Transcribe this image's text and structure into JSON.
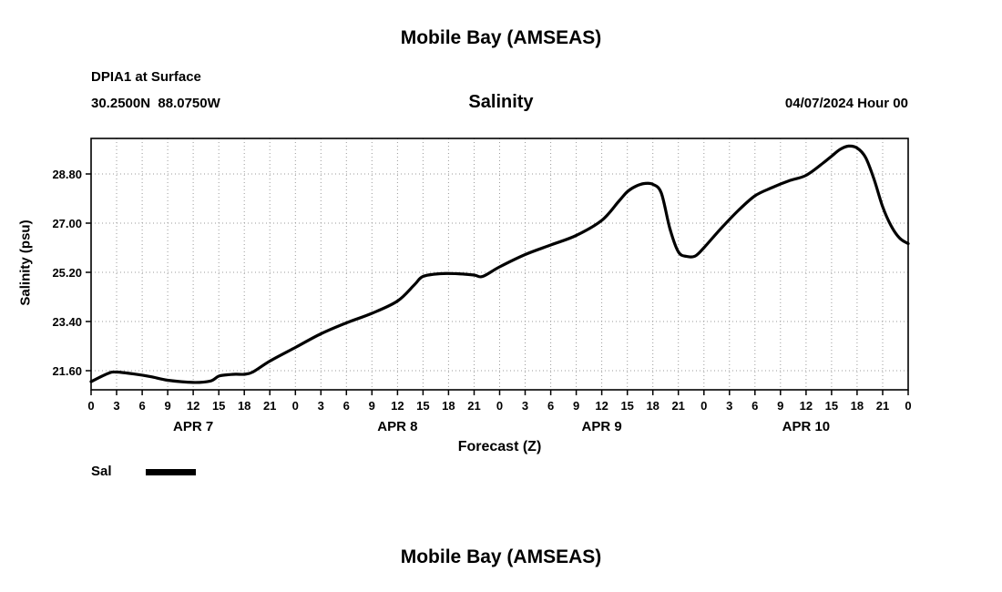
{
  "page": {
    "title": "Mobile Bay (AMSEAS)",
    "bottom_title": "Mobile Bay (AMSEAS)"
  },
  "header": {
    "station_line1": "DPIA1 at Surface",
    "station_line2": "30.2500N  88.0750W",
    "variable_title": "Salinity",
    "run_label": "04/07/2024 Hour 00"
  },
  "legend": {
    "label": "Sal",
    "line_color": "#000000"
  },
  "chart_data": {
    "type": "line",
    "title": "Salinity",
    "xlabel": "Forecast (Z)",
    "ylabel": "Salinity (psu)",
    "xlim": [
      0,
      96
    ],
    "ylim": [
      20.9,
      30.1
    ],
    "xtick_step": 3,
    "xtick_labels_cycle": [
      "0",
      "3",
      "6",
      "9",
      "12",
      "15",
      "18",
      "21"
    ],
    "yticks": [
      21.6,
      23.4,
      25.2,
      27.0,
      28.8
    ],
    "ytick_labels": [
      "21.60",
      "23.40",
      "25.20",
      "27.00",
      "28.80"
    ],
    "day_labels": [
      {
        "label": "APR 7",
        "hour": 12
      },
      {
        "label": "APR 8",
        "hour": 36
      },
      {
        "label": "APR 9",
        "hour": 60
      },
      {
        "label": "APR 10",
        "hour": 84
      }
    ],
    "grid": "dotted",
    "legend_position": "below-left",
    "series": [
      {
        "name": "Sal",
        "color": "#000000",
        "x": [
          0,
          2,
          3,
          5,
          7,
          9,
          12,
          14,
          15,
          16,
          17,
          18,
          19,
          21,
          24,
          27,
          30,
          33,
          36,
          38,
          39,
          41,
          43,
          45,
          46,
          48,
          51,
          54,
          57,
          60,
          62,
          63,
          64,
          65,
          66,
          67,
          68,
          69,
          70,
          71,
          72,
          74,
          76,
          78,
          80,
          82,
          84,
          86,
          87,
          88,
          89,
          90,
          91,
          92,
          93,
          94,
          95,
          96
        ],
        "y": [
          21.2,
          21.5,
          21.55,
          21.48,
          21.38,
          21.25,
          21.17,
          21.22,
          21.4,
          21.45,
          21.47,
          21.47,
          21.55,
          21.95,
          22.45,
          22.95,
          23.35,
          23.7,
          24.15,
          24.75,
          25.05,
          25.15,
          25.15,
          25.1,
          25.05,
          25.4,
          25.85,
          26.2,
          26.55,
          27.1,
          27.8,
          28.15,
          28.35,
          28.45,
          28.42,
          28.1,
          26.8,
          25.95,
          25.78,
          25.8,
          26.1,
          26.8,
          27.45,
          28.0,
          28.3,
          28.55,
          28.75,
          29.2,
          29.45,
          29.7,
          29.82,
          29.75,
          29.4,
          28.6,
          27.6,
          26.9,
          26.45,
          26.25
        ]
      }
    ]
  }
}
